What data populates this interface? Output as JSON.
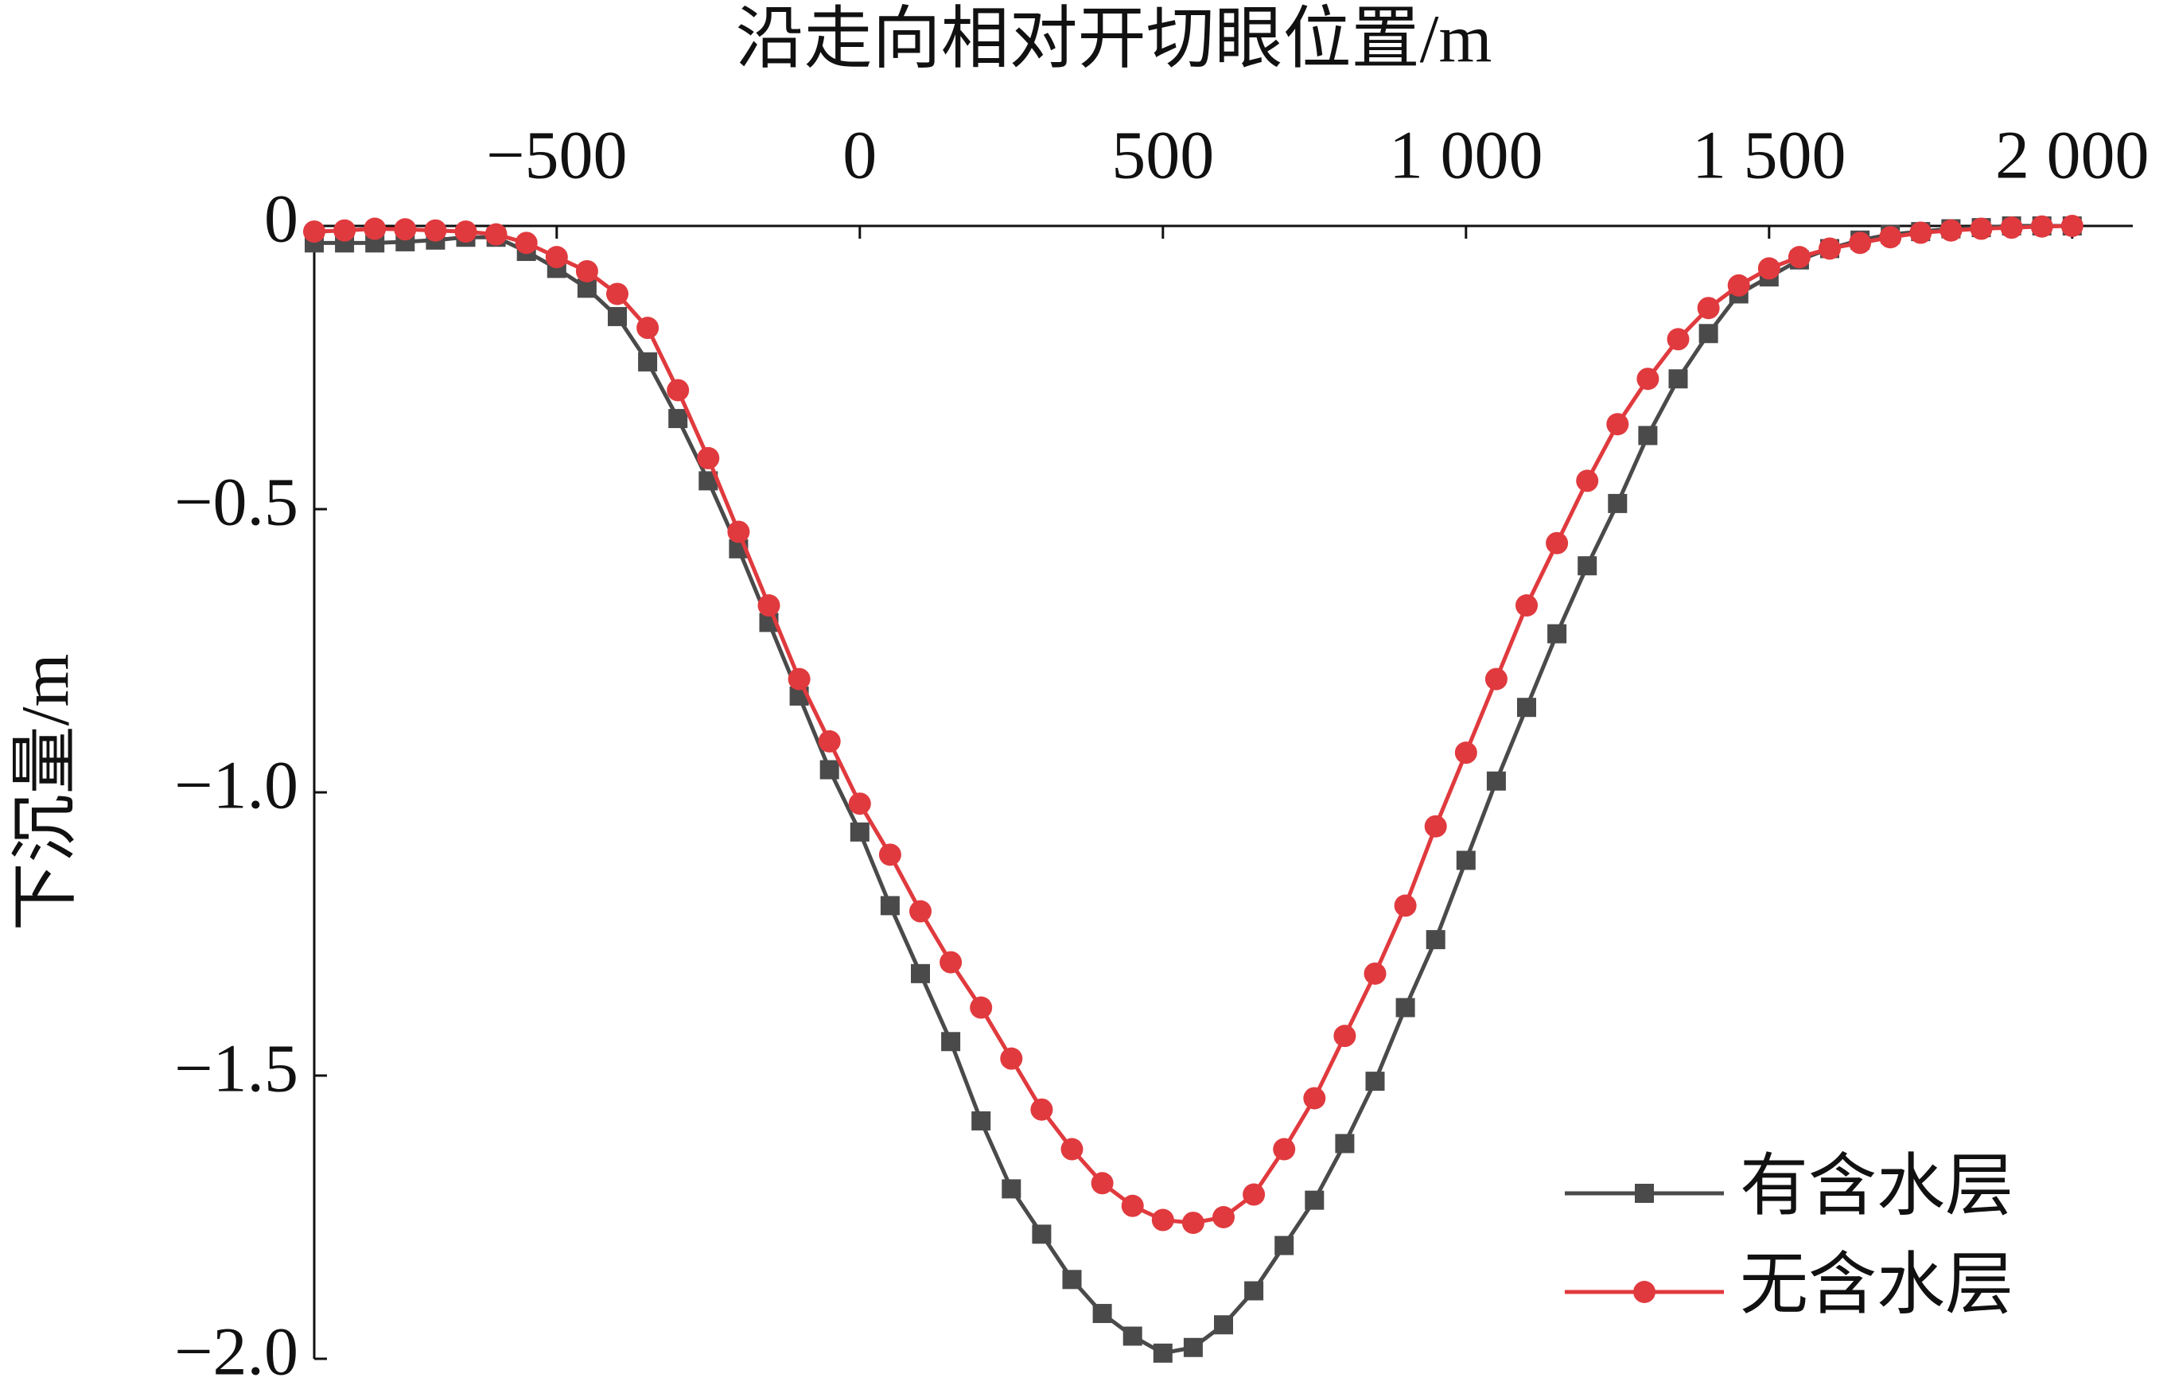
{
  "chart_data": {
    "type": "line",
    "x_label": "沿走向相对开切眼位置/m",
    "y_label": "下沉量/m",
    "x": [
      -900,
      -850,
      -800,
      -750,
      -700,
      -650,
      -600,
      -550,
      -500,
      -450,
      -400,
      -350,
      -300,
      -250,
      -200,
      -150,
      -100,
      -50,
      0,
      50,
      100,
      150,
      200,
      250,
      300,
      350,
      400,
      450,
      500,
      550,
      600,
      650,
      700,
      750,
      800,
      850,
      900,
      950,
      1000,
      1050,
      1100,
      1150,
      1200,
      1250,
      1300,
      1350,
      1400,
      1450,
      1500,
      1550,
      1600,
      1650,
      1700,
      1750,
      1800,
      1850,
      1900,
      1950,
      2000
    ],
    "series": [
      {
        "name": "有含水层",
        "color": "#4a4a4a",
        "marker": "square",
        "values": [
          -0.03,
          -0.03,
          -0.03,
          -0.028,
          -0.025,
          -0.02,
          -0.02,
          -0.045,
          -0.075,
          -0.11,
          -0.16,
          -0.24,
          -0.34,
          -0.45,
          -0.57,
          -0.7,
          -0.83,
          -0.96,
          -1.07,
          -1.2,
          -1.32,
          -1.44,
          -1.58,
          -1.7,
          -1.78,
          -1.86,
          -1.92,
          -1.96,
          -1.99,
          -1.98,
          -1.94,
          -1.88,
          -1.8,
          -1.72,
          -1.62,
          -1.51,
          -1.38,
          -1.26,
          -1.12,
          -0.98,
          -0.85,
          -0.72,
          -0.6,
          -0.49,
          -0.37,
          -0.27,
          -0.19,
          -0.12,
          -0.09,
          -0.06,
          -0.04,
          -0.025,
          -0.015,
          -0.01,
          -0.005,
          -0.003,
          0,
          0,
          0
        ]
      },
      {
        "name": "无含水层",
        "color": "#e03a3e",
        "marker": "circle",
        "values": [
          -0.01,
          -0.008,
          -0.005,
          -0.006,
          -0.008,
          -0.01,
          -0.015,
          -0.03,
          -0.055,
          -0.08,
          -0.12,
          -0.18,
          -0.29,
          -0.41,
          -0.54,
          -0.67,
          -0.8,
          -0.91,
          -1.02,
          -1.11,
          -1.21,
          -1.3,
          -1.38,
          -1.47,
          -1.56,
          -1.63,
          -1.69,
          -1.73,
          -1.755,
          -1.76,
          -1.75,
          -1.71,
          -1.63,
          -1.54,
          -1.43,
          -1.32,
          -1.2,
          -1.06,
          -0.93,
          -0.8,
          -0.67,
          -0.56,
          -0.45,
          -0.35,
          -0.27,
          -0.2,
          -0.145,
          -0.105,
          -0.075,
          -0.055,
          -0.04,
          -0.03,
          -0.02,
          -0.012,
          -0.008,
          -0.005,
          -0.003,
          -0.001,
          0
        ]
      }
    ],
    "xlim": [
      -900,
      2100
    ],
    "xticks": [
      {
        "value": -500,
        "label": "−500"
      },
      0,
      500,
      {
        "value": 1000,
        "label": "1 000"
      },
      {
        "value": 1500,
        "label": "1 500"
      },
      {
        "value": 2000,
        "label": "2 000"
      }
    ],
    "ylim": [
      -2,
      0
    ],
    "yticks": [
      0,
      {
        "value": -0.5,
        "label": "−0.5"
      },
      {
        "value": -1,
        "label": "−1.0"
      },
      {
        "value": -1.5,
        "label": "−1.5"
      },
      {
        "value": -2,
        "label": "−2.0"
      }
    ],
    "x_axis_position": "top",
    "grid": false,
    "legend": "lower right"
  }
}
